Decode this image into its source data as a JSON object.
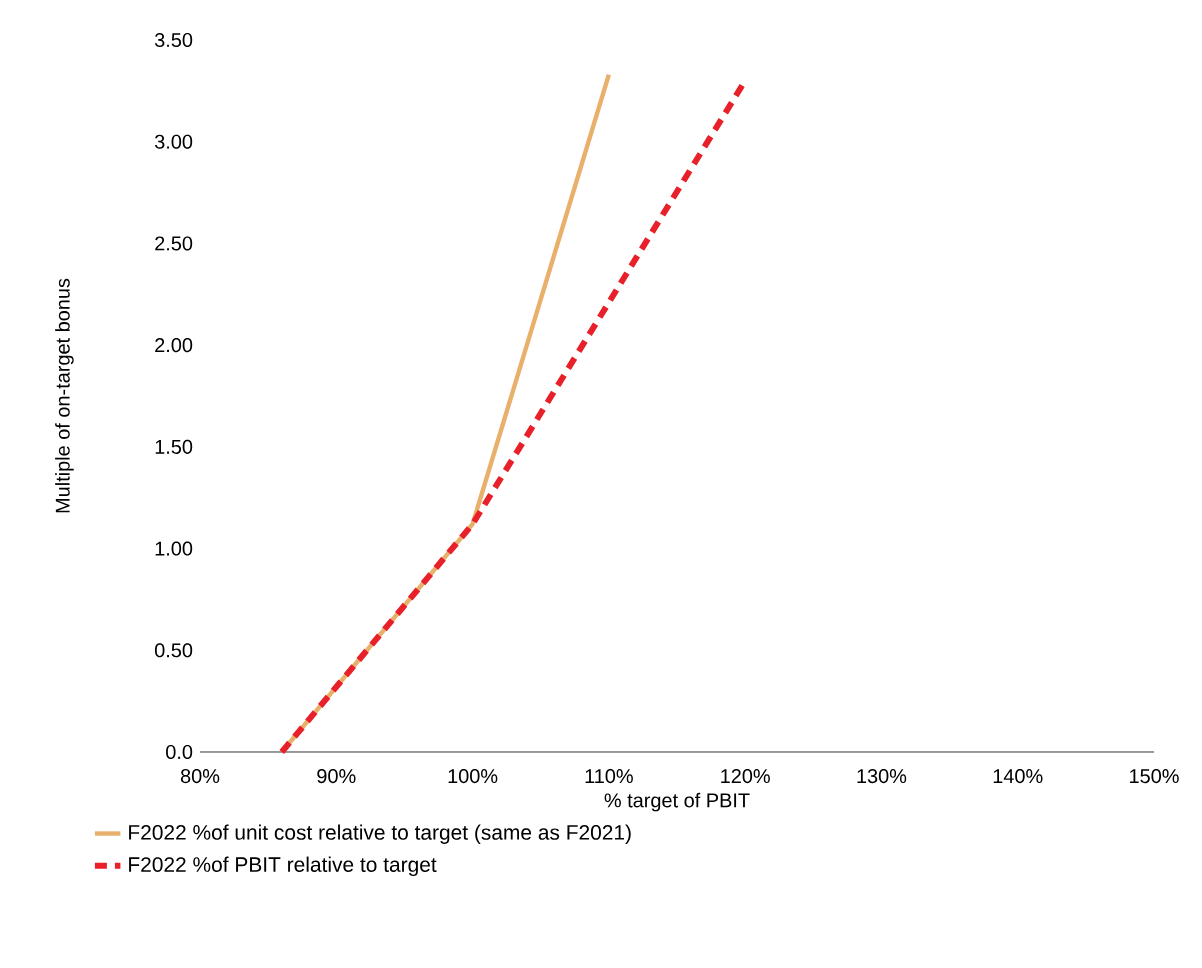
{
  "chart_data": {
    "type": "line",
    "xlabel": "% target of PBIT",
    "ylabel": "Multiple of on-target bonus",
    "xlim": [
      80,
      150
    ],
    "ylim": [
      0,
      3.5
    ],
    "xticks": [
      {
        "value": 80,
        "label": "80%"
      },
      {
        "value": 90,
        "label": "90%"
      },
      {
        "value": 100,
        "label": "100%"
      },
      {
        "value": 110,
        "label": "110%"
      },
      {
        "value": 120,
        "label": "120%"
      },
      {
        "value": 130,
        "label": "130%"
      },
      {
        "value": 140,
        "label": "140%"
      },
      {
        "value": 150,
        "label": "150%"
      }
    ],
    "yticks": [
      {
        "value": 0,
        "label": "0.0"
      },
      {
        "value": 0.5,
        "label": "0.50"
      },
      {
        "value": 1,
        "label": "1.00"
      },
      {
        "value": 1.5,
        "label": "1.50"
      },
      {
        "value": 2,
        "label": "2.00"
      },
      {
        "value": 2.5,
        "label": "2.50"
      },
      {
        "value": 3,
        "label": "3.00"
      },
      {
        "value": 3.5,
        "label": "3.50"
      }
    ],
    "grid": false,
    "legend": "bottom",
    "series": [
      {
        "name": "F2022 %of unit cost relative to target (same as F2021)",
        "color": "#e8b06a",
        "line_style": "solid",
        "x": [
          86,
          100,
          110
        ],
        "values": [
          0,
          1.12,
          3.33
        ]
      },
      {
        "name": "F2022 %of PBIT relative to target",
        "color": "#e8202a",
        "line_style": "dashed",
        "x": [
          86,
          100,
          120
        ],
        "values": [
          0,
          1.12,
          3.3
        ]
      }
    ]
  }
}
